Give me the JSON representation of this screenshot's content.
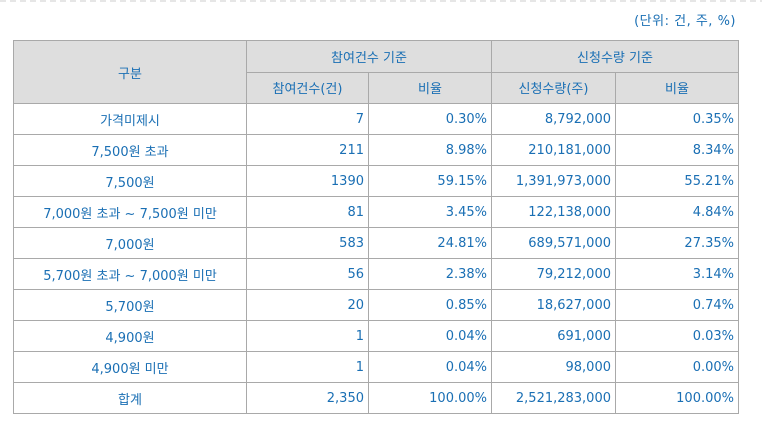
{
  "unit_label": "(단위: 건, 주, %)",
  "table": {
    "header": {
      "category": "구분",
      "group_participation": "참여건수 기준",
      "group_quantity": "신청수량 기준",
      "participation_count": "참여건수(건)",
      "participation_ratio": "비율",
      "quantity_shares": "신청수량(주)",
      "quantity_ratio": "비율"
    },
    "rows": [
      {
        "category": "가격미제시",
        "count": "7",
        "count_ratio": "0.30%",
        "shares": "8,792,000",
        "shares_ratio": "0.35%"
      },
      {
        "category": "7,500원 초과",
        "count": "211",
        "count_ratio": "8.98%",
        "shares": "210,181,000",
        "shares_ratio": "8.34%"
      },
      {
        "category": "7,500원",
        "count": "1390",
        "count_ratio": "59.15%",
        "shares": "1,391,973,000",
        "shares_ratio": "55.21%"
      },
      {
        "category": "7,000원 초과 ~ 7,500원 미만",
        "count": "81",
        "count_ratio": "3.45%",
        "shares": "122,138,000",
        "shares_ratio": "4.84%"
      },
      {
        "category": "7,000원",
        "count": "583",
        "count_ratio": "24.81%",
        "shares": "689,571,000",
        "shares_ratio": "27.35%"
      },
      {
        "category": "5,700원 초과 ~ 7,000원 미만",
        "count": "56",
        "count_ratio": "2.38%",
        "shares": "79,212,000",
        "shares_ratio": "3.14%"
      },
      {
        "category": "5,700원",
        "count": "20",
        "count_ratio": "0.85%",
        "shares": "18,627,000",
        "shares_ratio": "0.74%"
      },
      {
        "category": "4,900원",
        "count": "1",
        "count_ratio": "0.04%",
        "shares": "691,000",
        "shares_ratio": "0.03%"
      },
      {
        "category": "4,900원 미만",
        "count": "1",
        "count_ratio": "0.04%",
        "shares": "98,000",
        "shares_ratio": "0.00%"
      }
    ],
    "total": {
      "category": "합계",
      "count": "2,350",
      "count_ratio": "100.00%",
      "shares": "2,521,283,000",
      "shares_ratio": "100.00%"
    }
  },
  "colors": {
    "text": "#1a6fb4",
    "header_bg": "#dedede",
    "border": "#a9a9a9"
  }
}
